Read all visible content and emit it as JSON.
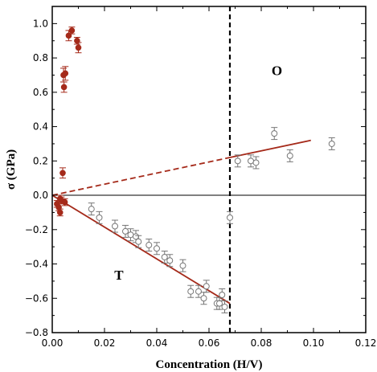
{
  "chart_data": {
    "type": "scatter",
    "xlabel": "Concentration (H/V)",
    "ylabel": "σ (GPa)",
    "xlim": [
      0,
      0.12
    ],
    "ylim": [
      -0.8,
      1.1
    ],
    "x_ticks": [
      0,
      0.02,
      0.04,
      0.06,
      0.08,
      0.1,
      0.12
    ],
    "x_tick_labels": [
      "0.00",
      "0.02",
      "0.04",
      "0.06",
      "0.08",
      "0.10",
      "0.12"
    ],
    "y_ticks": [
      -0.8,
      -0.6,
      -0.4,
      -0.2,
      0,
      0.2,
      0.4,
      0.6,
      0.8,
      1.0
    ],
    "y_tick_labels": [
      "−0.8",
      "−0.6",
      "−0.4",
      "−0.2",
      "0.0",
      "0.2",
      "0.4",
      "0.6",
      "0.8",
      "1.0"
    ],
    "grid": false,
    "zero_line": 0,
    "vertical_dashed_line_x": 0.068,
    "annotations": [
      {
        "text": "O",
        "x": 0.086,
        "y": 0.7
      },
      {
        "text": "T",
        "x": 0.0255,
        "y": -0.49
      }
    ],
    "series": [
      {
        "marker": "filled-circle",
        "color": "#a52a1a",
        "x": [
          0.0018,
          0.0025,
          0.003,
          0.003,
          0.0035,
          0.004,
          0.0043,
          0.0045,
          0.0048,
          0.005,
          0.0063,
          0.0075,
          0.0095,
          0.01
        ],
        "y": [
          -0.05,
          -0.07,
          -0.02,
          -0.1,
          -0.03,
          0.13,
          0.7,
          0.63,
          -0.04,
          0.71,
          0.93,
          0.96,
          0.9,
          0.86
        ],
        "err": [
          0.02,
          0.02,
          0.02,
          0.02,
          0.02,
          0.03,
          0.04,
          0.03,
          0.02,
          0.04,
          0.03,
          0.02,
          0.02,
          0.03
        ]
      },
      {
        "marker": "open-circle",
        "color": "#777777",
        "x": [
          0.015,
          0.018,
          0.024,
          0.028,
          0.03,
          0.032,
          0.033,
          0.037,
          0.04,
          0.043,
          0.045,
          0.05,
          0.053,
          0.056,
          0.058,
          0.059,
          0.063,
          0.064,
          0.065,
          0.066,
          0.068,
          0.071,
          0.076,
          0.078,
          0.085,
          0.091,
          0.107
        ],
        "y": [
          -0.08,
          -0.13,
          -0.18,
          -0.21,
          -0.23,
          -0.24,
          -0.27,
          -0.29,
          -0.31,
          -0.36,
          -0.38,
          -0.41,
          -0.56,
          -0.56,
          -0.6,
          -0.53,
          -0.63,
          -0.63,
          -0.58,
          -0.65,
          -0.13,
          0.2,
          0.2,
          0.19,
          0.36,
          0.23,
          0.3
        ],
        "err": [
          0.035,
          0.035,
          0.035,
          0.035,
          0.035,
          0.035,
          0.035,
          0.035,
          0.035,
          0.035,
          0.035,
          0.035,
          0.035,
          0.035,
          0.035,
          0.035,
          0.035,
          0.035,
          0.035,
          0.035,
          0.035,
          0.035,
          0.035,
          0.035,
          0.035,
          0.035,
          0.035
        ]
      }
    ],
    "fit_lines": [
      {
        "style": "solid",
        "color": "#a52a1a",
        "x": [
          0,
          0.068
        ],
        "y": [
          0,
          -0.63
        ]
      },
      {
        "style": "dashed",
        "color": "#a52a1a",
        "x": [
          0,
          0.068
        ],
        "y": [
          0,
          0.22
        ]
      },
      {
        "style": "solid",
        "color": "#a52a1a",
        "x": [
          0.068,
          0.099
        ],
        "y": [
          0.22,
          0.32
        ]
      }
    ]
  }
}
